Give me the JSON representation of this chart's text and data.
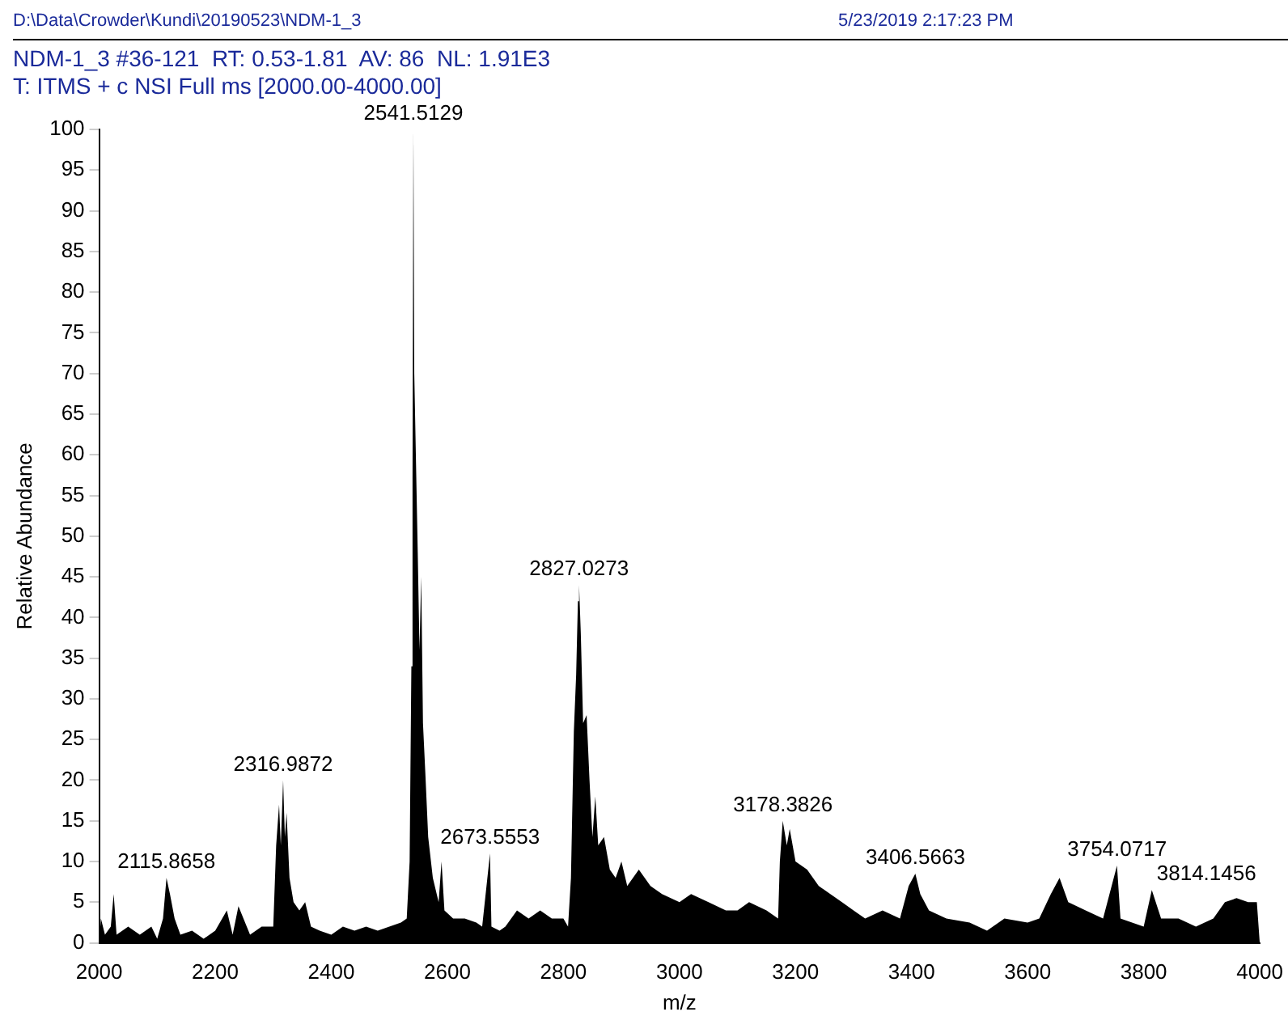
{
  "chart_data": {
    "type": "area",
    "title": "NDM-1_3 #36-121  RT: 0.53-1.81  AV: 86  NL: 1.91E3",
    "subtitle": "T: ITMS + c NSI Full ms [2000.00-4000.00]",
    "xlabel": "m/z",
    "ylabel": "Relative Abundance",
    "annotations": [
      "D:\\Data\\Crowder\\Kundi\\20190523\\NDM-1_3",
      "5/23/2019 2:17:23 PM",
      {
        "text": "2115.8658",
        "x": 2115.8658,
        "y": 8
      },
      {
        "text": "2316.9872",
        "x": 2316.9872,
        "y": 20
      },
      {
        "text": "2541.5129",
        "x": 2541.5129,
        "y": 100
      },
      {
        "text": "2673.5553",
        "x": 2673.5553,
        "y": 11
      },
      {
        "text": "2827.0273",
        "x": 2827.0273,
        "y": 44
      },
      {
        "text": "3178.3826",
        "x": 3178.3826,
        "y": 15
      },
      {
        "text": "3406.5663",
        "x": 3406.5663,
        "y": 8.5
      },
      {
        "text": "3754.0717",
        "x": 3754.0717,
        "y": 9.5
      },
      {
        "text": "3814.1456",
        "x": 3814.1456,
        "y": 6.5
      }
    ],
    "x": [
      2000,
      2003,
      2010,
      2020,
      2025,
      2030,
      2050,
      2070,
      2090,
      2100,
      2110,
      2116,
      2122,
      2130,
      2140,
      2160,
      2180,
      2200,
      2220,
      2230,
      2240,
      2260,
      2280,
      2300,
      2305,
      2310,
      2313,
      2317,
      2320,
      2323,
      2328,
      2335,
      2345,
      2355,
      2365,
      2380,
      2400,
      2420,
      2440,
      2460,
      2480,
      2500,
      2520,
      2530,
      2535,
      2538,
      2540,
      2541.5,
      2543,
      2546,
      2549,
      2552,
      2555,
      2558,
      2562,
      2567,
      2575,
      2585,
      2590,
      2595,
      2610,
      2630,
      2650,
      2660,
      2673.5,
      2676,
      2690,
      2700,
      2720,
      2740,
      2760,
      2780,
      2800,
      2808,
      2813,
      2818,
      2822,
      2825,
      2827,
      2830,
      2834,
      2840,
      2845,
      2850,
      2855,
      2860,
      2870,
      2880,
      2890,
      2900,
      2910,
      2930,
      2950,
      2970,
      3000,
      3020,
      3050,
      3080,
      3100,
      3120,
      3150,
      3170,
      3173,
      3178,
      3185,
      3190,
      3200,
      3220,
      3240,
      3260,
      3280,
      3300,
      3320,
      3350,
      3380,
      3395,
      3406.5,
      3415,
      3430,
      3460,
      3500,
      3530,
      3560,
      3600,
      3620,
      3640,
      3655,
      3670,
      3700,
      3730,
      3754,
      3760,
      3800,
      3814,
      3830,
      3860,
      3890,
      3920,
      3940,
      3960,
      3980,
      3995,
      4000
    ],
    "values": [
      0,
      3,
      1,
      2,
      6,
      1,
      2,
      1,
      2,
      0.5,
      3,
      8,
      6,
      3,
      1,
      1.5,
      0.5,
      1.5,
      4,
      1,
      4.5,
      1,
      2,
      2,
      12,
      17,
      12,
      20,
      13,
      16,
      8,
      5,
      4,
      5,
      2,
      1.5,
      1,
      2,
      1.5,
      2,
      1.5,
      2,
      2.5,
      3,
      10,
      34,
      57,
      100,
      70,
      59,
      48,
      36,
      45,
      27,
      21,
      13,
      8,
      5,
      10,
      4,
      3,
      3,
      2.5,
      2,
      11,
      2,
      1.5,
      2,
      4,
      3,
      4,
      3,
      3,
      2,
      8,
      26,
      33,
      42,
      44,
      38,
      27,
      28,
      20,
      13,
      18,
      12,
      13,
      9,
      8,
      10,
      7,
      9,
      7,
      6,
      5,
      6,
      5,
      4,
      4,
      5,
      4,
      3,
      10,
      15,
      12,
      14,
      10,
      9,
      7,
      6,
      5,
      4,
      3,
      4,
      3,
      7,
      8.5,
      6,
      4,
      3,
      2.5,
      1.5,
      3,
      2.5,
      3,
      6,
      8,
      5,
      4,
      3,
      9.5,
      3,
      2,
      6.5,
      3,
      3,
      2,
      3,
      5,
      5.5,
      5,
      5,
      0
    ],
    "color": "#000000",
    "xlim": [
      2000,
      4000
    ],
    "xticks": [
      2000,
      2200,
      2400,
      2600,
      2800,
      3000,
      3200,
      3400,
      3600,
      3800,
      4000
    ],
    "ylim": [
      0,
      100
    ],
    "yticks": [
      0,
      5,
      10,
      15,
      20,
      25,
      30,
      35,
      40,
      45,
      50,
      55,
      60,
      65,
      70,
      75,
      80,
      85,
      90,
      95,
      100
    ],
    "grid": false,
    "legend": false
  }
}
